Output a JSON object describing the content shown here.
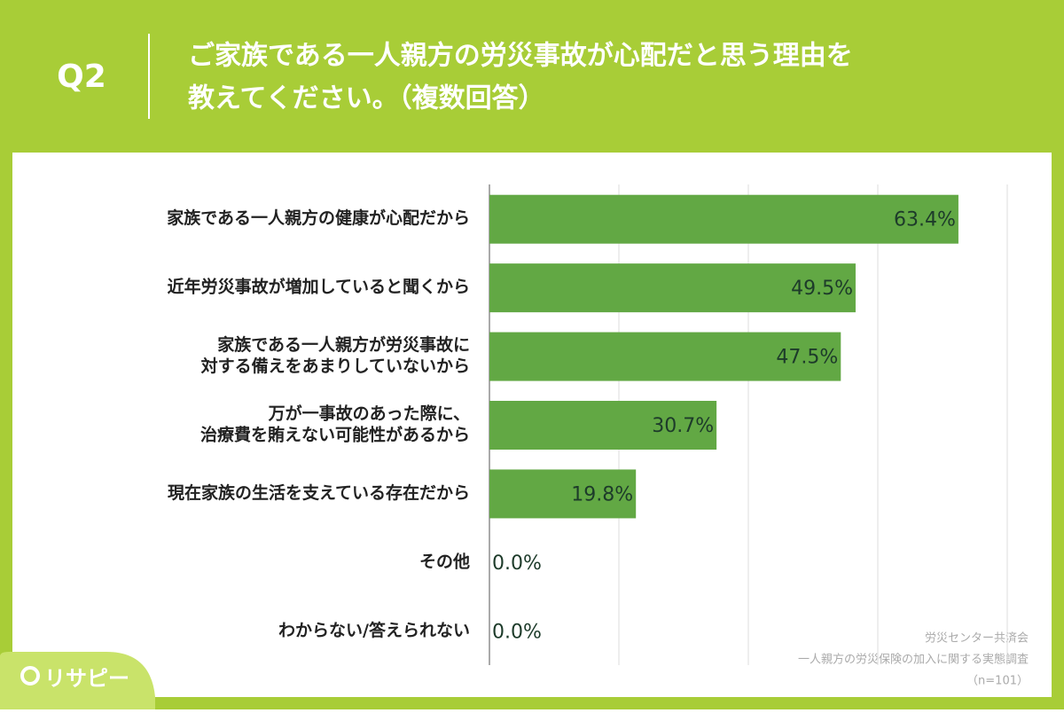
{
  "question": "Q2",
  "title_lines": [
    "ご家族である一人親方の労災事故が心配だと思う理由を",
    "教えてください。（複数回答）"
  ],
  "chart_data": {
    "type": "bar",
    "orientation": "horizontal",
    "categories": [
      [
        "家族である一人親方の健康が心配だから"
      ],
      [
        "近年労災事故が増加していると聞くから"
      ],
      [
        "家族である一人親方が労災事故に",
        "対する備えをあまりしていないから"
      ],
      [
        "万が一事故のあった際に、",
        "治療費を賄えない可能性があるから"
      ],
      [
        "現在家族の生活を支えている存在だから"
      ],
      [
        "その他"
      ],
      [
        "わからない/答えられない"
      ]
    ],
    "values": [
      63.4,
      49.5,
      47.5,
      30.7,
      19.8,
      0.0,
      0.0
    ],
    "value_labels": [
      "63.4%",
      "49.5%",
      "47.5%",
      "30.7%",
      "19.8%",
      "0.0%",
      "0.0%"
    ],
    "color": "#62a844",
    "xlim": [
      0,
      70
    ],
    "xticks": [
      0,
      17.5,
      35,
      52.5,
      70
    ],
    "grid": true
  },
  "source": [
    "労災センター共済会",
    "一人親方の労災保険の加入に関する実態調査",
    "（n=101）"
  ],
  "logo": "リサピー"
}
